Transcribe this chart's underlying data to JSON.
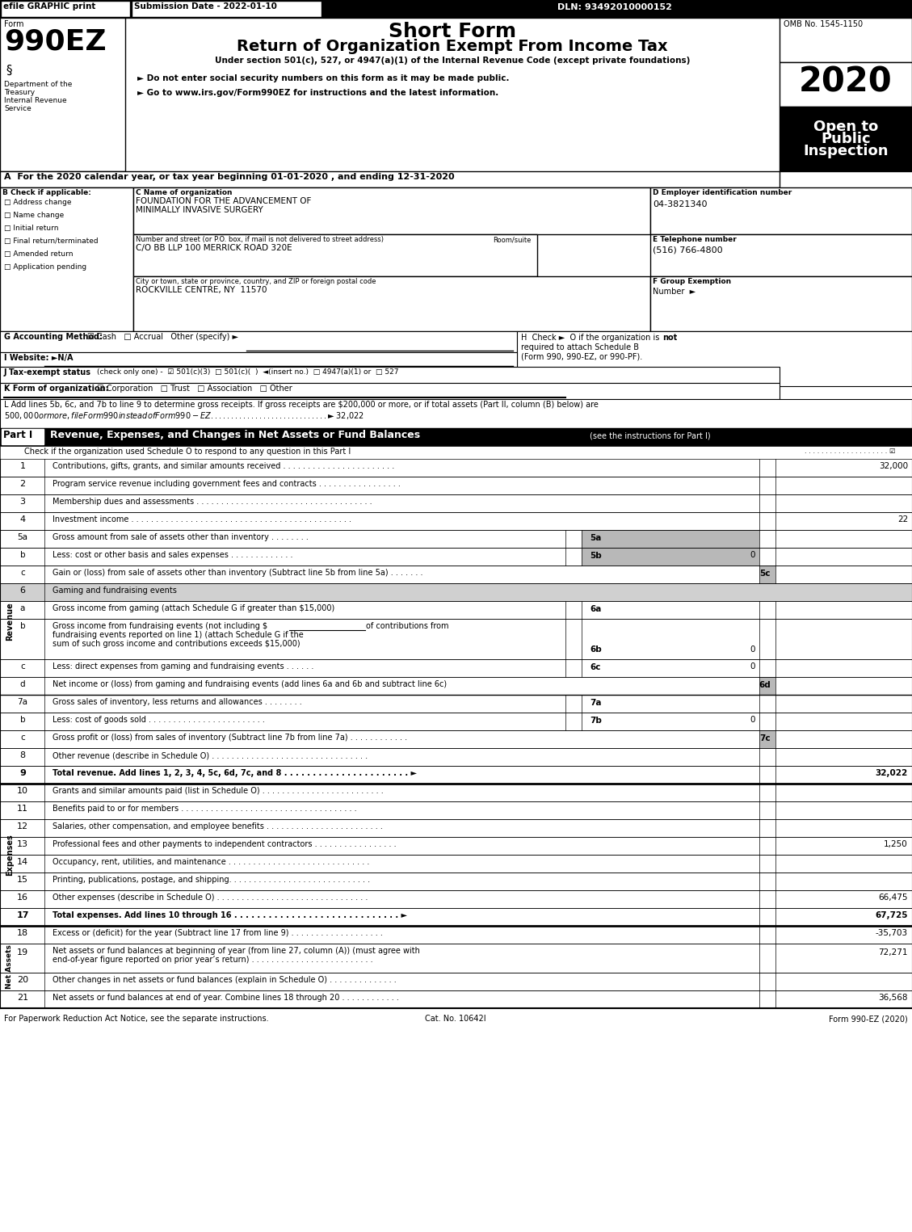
{
  "title_short": "Short Form",
  "title_main": "Return of Organization Exempt From Income Tax",
  "subtitle": "Under section 501(c), 527, or 4947(a)(1) of the Internal Revenue Code (except private foundations)",
  "year": "2020",
  "form_number": "990EZ",
  "omb": "OMB No. 1545-1150",
  "efile_text": "efile GRAPHIC print",
  "submission_date": "Submission Date - 2022-01-10",
  "dln": "DLN: 93492010000152",
  "open_to_line1": "Open to",
  "open_to_line2": "Public",
  "open_to_line3": "Inspection",
  "bullet1": "► Do not enter social security numbers on this form as it may be made public.",
  "bullet2": "► Go to www.irs.gov/Form990EZ for instructions and the latest information.",
  "dept_line1": "Department of the",
  "dept_line2": "Treasury",
  "dept_line3": "Internal Revenue",
  "dept_line4": "Service",
  "year_line": "A  For the 2020 calendar year, or tax year beginning 01-01-2020 , and ending 12-31-2020",
  "check_label": "B Check if applicable:",
  "check_items": [
    "Address change",
    "Name change",
    "Initial return",
    "Final return/terminated",
    "Amended return",
    "Application pending"
  ],
  "org_name_label": "C Name of organization",
  "org_name_line1": "FOUNDATION FOR THE ADVANCEMENT OF",
  "org_name_line2": "MINIMALLY INVASIVE SURGERY",
  "ein_label": "D Employer identification number",
  "ein": "04-3821340",
  "street_label": "Number and street (or P.O. box, if mail is not delivered to street address)",
  "room_label": "Room/suite",
  "street": "C/O BB LLP 100 MERRICK ROAD 320E",
  "phone_label": "E Telephone number",
  "phone": "(516) 766-4800",
  "city_label": "City or town, state or province, country, and ZIP or foreign postal code",
  "city": "ROCKVILLE CENTRE, NY  11570",
  "group_label": "F Group Exemption",
  "group_number": "Number  ►",
  "accounting_label": "G Accounting Method:",
  "website_label": "I Website: ►N/A",
  "footer_left": "For Paperwork Reduction Act Notice, see the separate instructions.",
  "footer_cat": "Cat. No. 10642I",
  "footer_right": "Form 990-EZ (2020)",
  "line_L1": "L Add lines 5b, 6c, and 7b to line 9 to determine gross receipts. If gross receipts are $200,000 or more, or if total assets (Part II, column (B) below) are",
  "line_L2": "$500,000 or more, file Form 990 instead of Form 990-EZ . . . . . . . . . . . . . . . . . . . . . . . . . . . . . ► $ 32,022"
}
